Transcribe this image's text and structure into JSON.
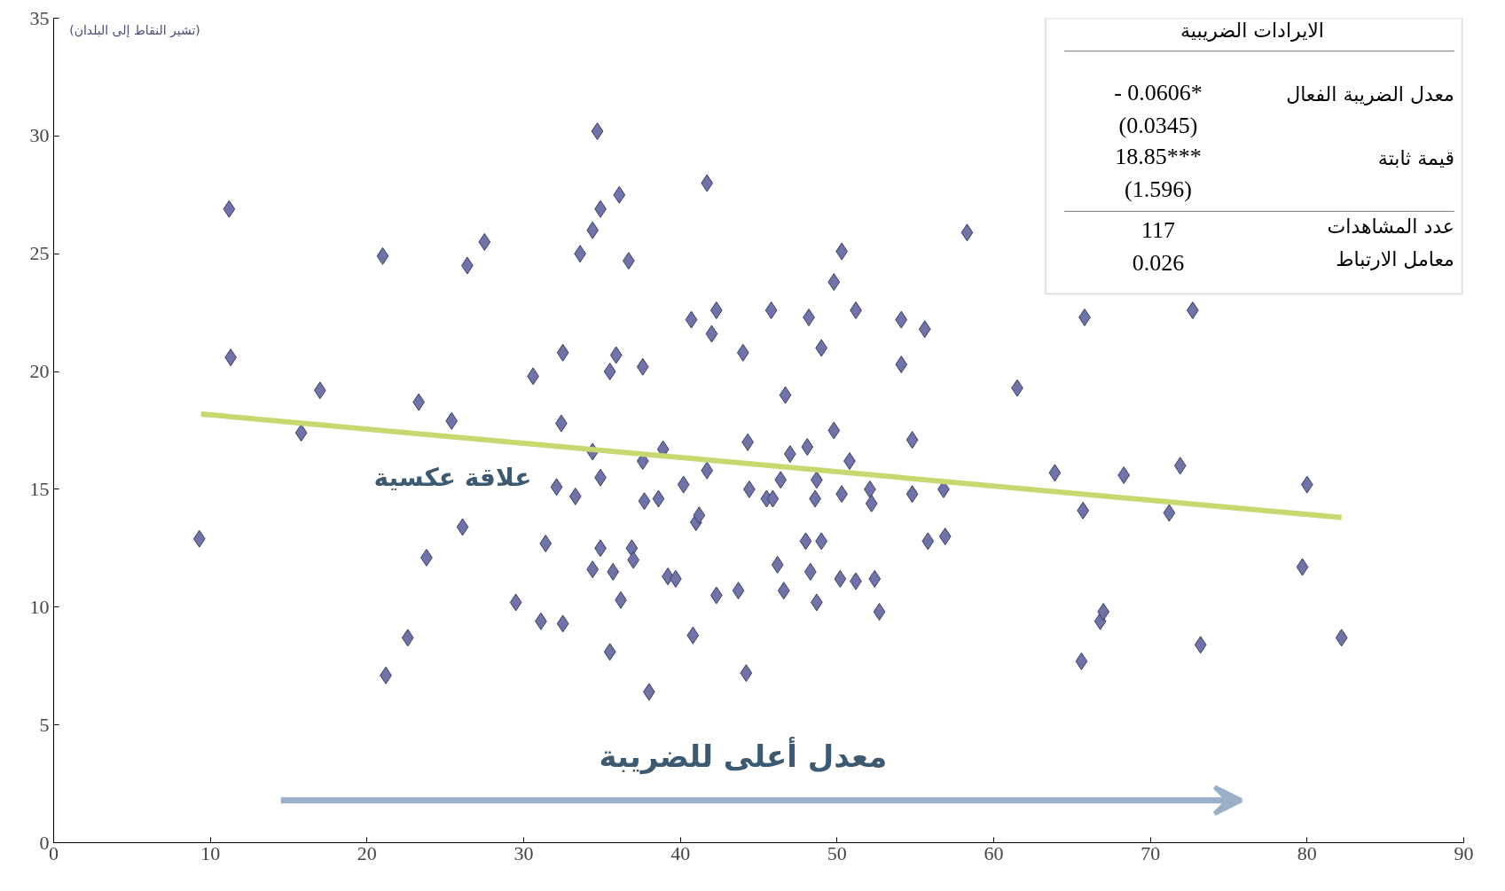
{
  "chart_data": {
    "type": "scatter",
    "xlim": [
      0,
      90
    ],
    "ylim": [
      0,
      35
    ],
    "xticks": [
      0,
      10,
      20,
      30,
      40,
      50,
      60,
      70,
      80,
      90
    ],
    "yticks": [
      0,
      5,
      10,
      15,
      20,
      25,
      30,
      35
    ],
    "series": [
      {
        "color": "#6f73a8",
        "marker": "diamond",
        "x": [
          9.3,
          11.2,
          11.3,
          15.8,
          17.0,
          21.0,
          21.2,
          22.6,
          23.3,
          23.8,
          25.4,
          26.1,
          26.4,
          27.5,
          29.5,
          30.6,
          31.1,
          31.4,
          32.1,
          32.4,
          32.5,
          32.5,
          33.3,
          33.6,
          34.4,
          34.4,
          34.4,
          34.7,
          34.9,
          34.9,
          34.9,
          35.5,
          35.5,
          35.7,
          35.9,
          36.1,
          36.2,
          36.7,
          36.9,
          37.0,
          37.6,
          37.6,
          37.7,
          38.0,
          38.6,
          38.9,
          39.2,
          39.7,
          40.2,
          40.7,
          40.8,
          41.0,
          41.2,
          41.7,
          41.7,
          42.0,
          42.3,
          42.3,
          43.7,
          44.0,
          44.2,
          44.3,
          44.4,
          45.5,
          45.8,
          45.9,
          46.2,
          46.4,
          46.6,
          46.7,
          47.0,
          48.0,
          48.1,
          48.2,
          48.3,
          48.6,
          48.7,
          48.7,
          49.0,
          49.0,
          49.8,
          49.8,
          50.2,
          50.3,
          50.3,
          50.8,
          51.2,
          51.2,
          52.1,
          52.2,
          52.4,
          52.7,
          54.1,
          54.1,
          54.8,
          54.8,
          55.6,
          55.8,
          56.8,
          56.9,
          58.3,
          61.5,
          63.9,
          65.6,
          65.7,
          65.8,
          66.8,
          67.0,
          68.3,
          71.2,
          71.9,
          72.7,
          73.2,
          79.7,
          80.0,
          82.2
        ],
        "values": [
          12.9,
          26.9,
          20.6,
          17.4,
          19.2,
          24.9,
          7.1,
          8.7,
          18.7,
          12.1,
          17.9,
          13.4,
          24.5,
          25.5,
          10.2,
          19.8,
          9.4,
          12.7,
          15.1,
          17.8,
          20.8,
          9.3,
          14.7,
          25.0,
          26.0,
          16.6,
          11.6,
          30.2,
          26.9,
          15.5,
          12.5,
          20.0,
          8.1,
          11.5,
          20.7,
          27.5,
          10.3,
          24.7,
          12.5,
          12.0,
          16.2,
          20.2,
          14.5,
          6.4,
          14.6,
          16.7,
          11.3,
          11.2,
          15.2,
          22.2,
          8.8,
          13.6,
          13.9,
          28.0,
          15.8,
          21.6,
          22.6,
          10.5,
          10.7,
          20.8,
          7.2,
          17.0,
          15.0,
          14.6,
          22.6,
          14.6,
          11.8,
          15.4,
          10.7,
          19.0,
          16.5,
          12.8,
          16.8,
          22.3,
          11.5,
          14.6,
          10.2,
          15.4,
          12.8,
          21.0,
          23.8,
          17.5,
          11.2,
          25.1,
          14.8,
          16.2,
          22.6,
          11.1,
          15.0,
          14.4,
          11.2,
          9.8,
          22.2,
          20.3,
          17.1,
          14.8,
          21.8,
          12.8,
          15.0,
          13.0,
          25.9,
          19.3,
          15.7,
          7.7,
          14.1,
          22.3,
          9.4,
          9.8,
          15.6,
          14.0,
          16.0,
          22.6,
          8.4,
          11.7,
          15.2,
          8.7
        ]
      },
      {
        "type": "line",
        "color": "#c8d870",
        "x": [
          9.4,
          82.2
        ],
        "values": [
          18.2,
          13.8
        ]
      }
    ],
    "annotations": [
      "(تشير النقاط إلى البلدان)",
      "علاقة عكسية",
      "معدل أعلى للضريبة",
      "الايرادات الضريبية",
      "معدل الضريبة الفعال",
      "- 0.0606*",
      "(0.0345)",
      "قيمة ثابتة",
      "18.85***",
      "(1.596)",
      "عدد المشاهدات",
      "117",
      "معامل الارتباط",
      "0.026"
    ]
  }
}
